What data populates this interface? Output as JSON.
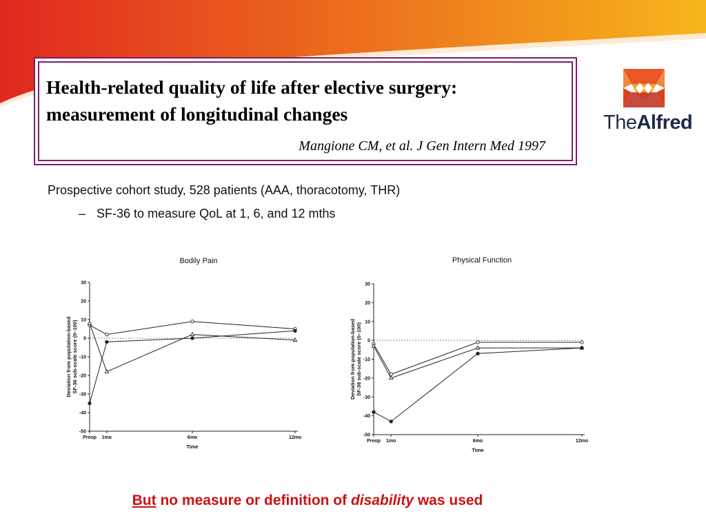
{
  "slide": {
    "title_line1": "Health-related quality of life after elective surgery:",
    "title_line2": "measurement of longitudinal changes",
    "citation": "Mangione CM, et al. J Gen Intern Med 1997",
    "logo": {
      "text_light": "The",
      "text_bold": "Alfred",
      "colors": [
        "#e8562a",
        "#f5a623",
        "#c0392b"
      ]
    },
    "bullets": {
      "b1": "Prospective cohort study, 528 patients (AAA, thoracotomy, THR)",
      "b2_dash": "–",
      "b2": "SF-36 to measure QoL at 1, 6, and 12 mths"
    },
    "footnote": {
      "part1": "But",
      "part2": " no measure or definition of ",
      "part3": "disability",
      "part4": " was used"
    },
    "banner_colors": {
      "start": "#e0281e",
      "end": "#f7b51c"
    },
    "accent_border": "#7a1f6b"
  },
  "chart_data": [
    {
      "type": "line",
      "title": "Bodily Pain",
      "xlabel": "Time",
      "ylabel": "Deviation from population-based SF-36 sub-scale score (0–100)",
      "x": [
        0,
        1,
        6,
        12
      ],
      "x_tick_labels": [
        "Preop",
        "1mo",
        "6mo",
        "12mo"
      ],
      "ylim": [
        -50,
        30
      ],
      "y_ticks": [
        30,
        20,
        10,
        0,
        -10,
        -20,
        -30,
        -40,
        -50
      ],
      "reference_line": 0,
      "series": [
        {
          "marker": "circle-open",
          "values": [
            7,
            2,
            9,
            5
          ]
        },
        {
          "marker": "triangle-open",
          "values": [
            8,
            -18,
            2,
            -1
          ]
        },
        {
          "marker": "circle-filled",
          "values": [
            -35,
            -2,
            0,
            4
          ]
        }
      ]
    },
    {
      "type": "line",
      "title": "Physical Function",
      "xlabel": "Time",
      "ylabel": "Deviation from population-based SF-36 sub-scale score (0–100)",
      "x": [
        0,
        1,
        6,
        12
      ],
      "x_tick_labels": [
        "Preop",
        "1mo",
        "6mo",
        "12mo"
      ],
      "ylim": [
        -50,
        30
      ],
      "y_ticks": [
        30,
        20,
        10,
        0,
        -10,
        -20,
        -30,
        -40,
        -50
      ],
      "reference_line": 0,
      "series": [
        {
          "marker": "circle-open",
          "values": [
            -2,
            -18,
            -1,
            -1
          ]
        },
        {
          "marker": "triangle-open",
          "values": [
            -3,
            -20,
            -4,
            -4
          ]
        },
        {
          "marker": "circle-filled",
          "values": [
            -38,
            -43,
            -7,
            -4
          ]
        }
      ]
    }
  ]
}
